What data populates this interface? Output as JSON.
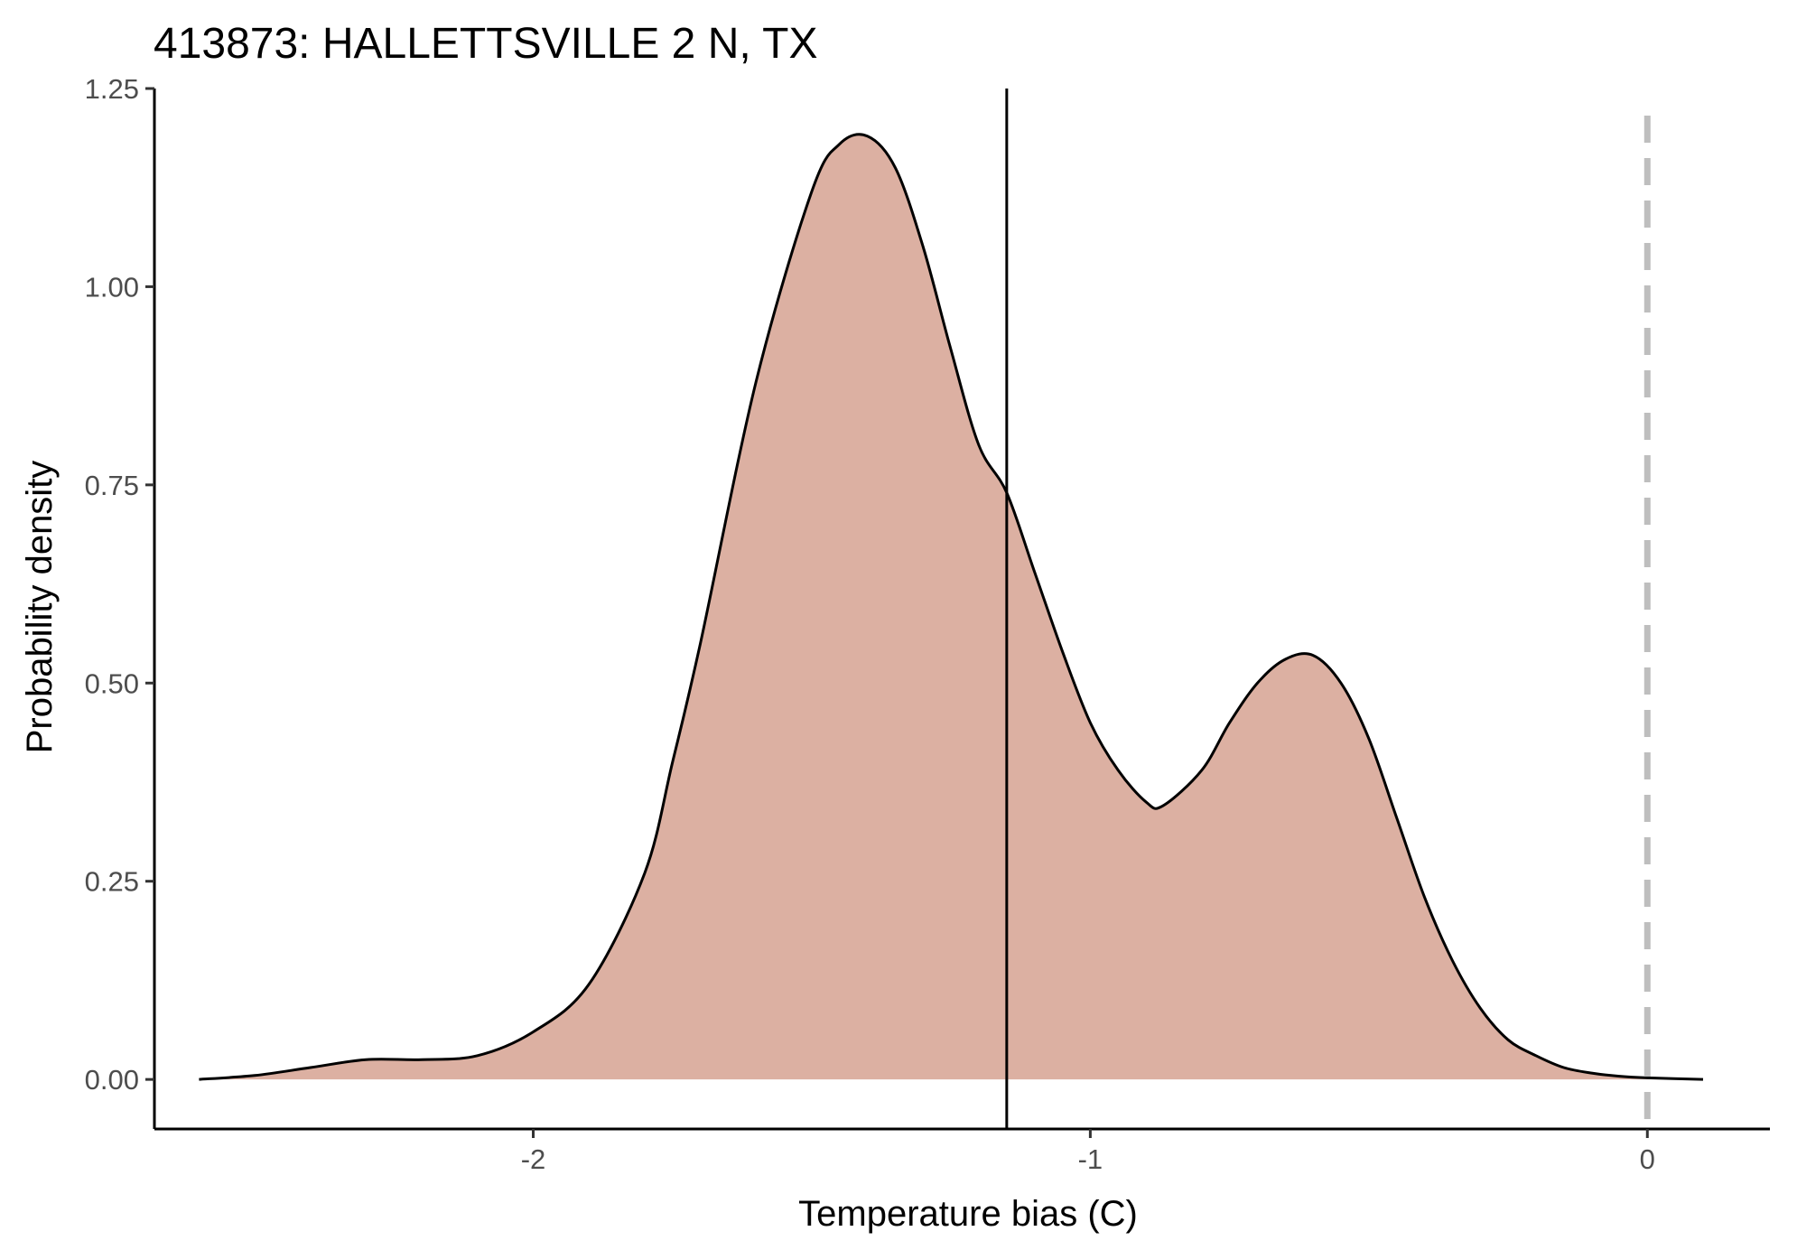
{
  "chart_data": {
    "type": "area",
    "title": "413873: HALLETTSVILLE 2 N, TX",
    "xlabel": "Temperature bias (C)",
    "ylabel": "Probability density",
    "xlim": [
      -2.68,
      0.22
    ],
    "ylim": [
      -0.0625,
      1.25
    ],
    "x_ticks": [
      -2,
      -1,
      0
    ],
    "x_tick_labels": [
      "-2",
      "-1",
      "0"
    ],
    "y_ticks": [
      0,
      0.25,
      0.5,
      0.75,
      1.0,
      1.25
    ],
    "y_tick_labels": [
      "0.00",
      "0.25",
      "0.50",
      "0.75",
      "1.00",
      "1.25"
    ],
    "grid": false,
    "series": [
      {
        "x": [
          -2.6,
          -2.5,
          -2.4,
          -2.3,
          -2.2,
          -2.1,
          -2.0,
          -1.9,
          -1.8,
          -1.75,
          -1.7,
          -1.6,
          -1.5,
          -1.45,
          -1.4,
          -1.35,
          -1.3,
          -1.25,
          -1.2,
          -1.15,
          -1.1,
          -1.05,
          -1.0,
          -0.95,
          -0.9,
          -0.87,
          -0.8,
          -0.75,
          -0.7,
          -0.65,
          -0.6,
          -0.55,
          -0.5,
          -0.45,
          -0.4,
          -0.35,
          -0.3,
          -0.25,
          -0.2,
          -0.15,
          -0.1,
          -0.05,
          0.0,
          0.1
        ],
        "y": [
          0.0,
          0.005,
          0.015,
          0.025,
          0.025,
          0.03,
          0.06,
          0.12,
          0.26,
          0.4,
          0.55,
          0.88,
          1.12,
          1.18,
          1.19,
          1.15,
          1.05,
          0.92,
          0.8,
          0.74,
          0.64,
          0.54,
          0.45,
          0.39,
          0.35,
          0.345,
          0.39,
          0.45,
          0.5,
          0.53,
          0.535,
          0.5,
          0.43,
          0.33,
          0.23,
          0.15,
          0.09,
          0.05,
          0.03,
          0.015,
          0.008,
          0.004,
          0.002,
          0.0
        ],
        "fill": "#dcb0a2",
        "stroke": "#000000"
      }
    ],
    "reference_lines": [
      {
        "x": -1.15,
        "style": "solid",
        "color": "#000000"
      },
      {
        "x": 0,
        "style": "dashed",
        "color": "#bebebe"
      }
    ]
  }
}
